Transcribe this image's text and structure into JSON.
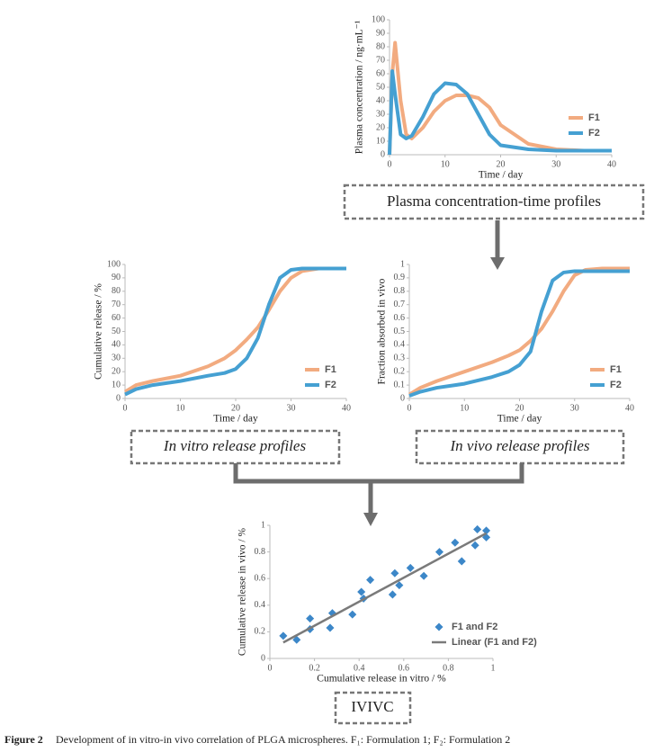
{
  "chart_data": [
    {
      "type": "line",
      "xlabel": "Time / day",
      "ylabel": "Plasma concentration / ng·mL⁻¹",
      "xlim": [
        0,
        40
      ],
      "xticks": [
        0,
        10,
        20,
        30,
        40
      ],
      "ylim": [
        0,
        100
      ],
      "yticks": [
        0,
        10,
        20,
        30,
        40,
        50,
        60,
        70,
        80,
        90,
        100
      ],
      "legend": "right",
      "series": [
        {
          "name": "F1",
          "color": "#f2ab80",
          "x": [
            0,
            0.5,
            1,
            2,
            3,
            4,
            6,
            8,
            10,
            12,
            14,
            16,
            18,
            20,
            25,
            30,
            35,
            40
          ],
          "values": [
            0,
            60,
            83,
            40,
            15,
            12,
            20,
            32,
            40,
            44,
            44,
            42,
            35,
            22,
            8,
            4,
            3,
            3
          ]
        },
        {
          "name": "F2",
          "color": "#45a0d2",
          "x": [
            0,
            0.5,
            1,
            2,
            3,
            4,
            6,
            8,
            10,
            12,
            14,
            16,
            18,
            20,
            25,
            30,
            35,
            40
          ],
          "values": [
            0,
            62,
            45,
            15,
            12,
            14,
            28,
            45,
            53,
            52,
            45,
            30,
            15,
            7,
            4,
            3,
            3,
            3
          ]
        }
      ]
    },
    {
      "type": "line",
      "xlabel": "Time / day",
      "ylabel": "Cumulative release / %",
      "xlim": [
        0,
        40
      ],
      "xticks": [
        0,
        10,
        20,
        30,
        40
      ],
      "ylim": [
        0,
        100
      ],
      "yticks": [
        0,
        10,
        20,
        30,
        40,
        50,
        60,
        70,
        80,
        90,
        100
      ],
      "legend": "right",
      "series": [
        {
          "name": "F1",
          "color": "#f2ab80",
          "x": [
            0,
            2,
            5,
            10,
            15,
            18,
            20,
            22,
            24,
            26,
            28,
            30,
            32,
            35,
            40
          ],
          "values": [
            5,
            10,
            13,
            17,
            24,
            30,
            36,
            44,
            53,
            66,
            80,
            90,
            95,
            97,
            97
          ]
        },
        {
          "name": "F2",
          "color": "#45a0d2",
          "x": [
            0,
            2,
            5,
            10,
            15,
            18,
            20,
            22,
            24,
            26,
            28,
            30,
            32,
            35,
            40
          ],
          "values": [
            3,
            7,
            10,
            13,
            17,
            19,
            22,
            30,
            45,
            70,
            90,
            96,
            97,
            97,
            97
          ]
        }
      ]
    },
    {
      "type": "line",
      "xlabel": "Time / day",
      "ylabel": "Fraction absorbed in vivo",
      "xlim": [
        0,
        40
      ],
      "xticks": [
        0,
        10,
        20,
        30,
        40
      ],
      "ylim": [
        0,
        1
      ],
      "yticks": [
        0,
        0.1,
        0.2,
        0.3,
        0.4,
        0.5,
        0.6,
        0.7,
        0.8,
        0.9,
        1
      ],
      "legend": "right",
      "series": [
        {
          "name": "F1",
          "color": "#f2ab80",
          "x": [
            0,
            2,
            5,
            10,
            15,
            18,
            20,
            22,
            24,
            26,
            28,
            30,
            32,
            35,
            40
          ],
          "values": [
            0.03,
            0.08,
            0.13,
            0.2,
            0.27,
            0.32,
            0.36,
            0.43,
            0.52,
            0.65,
            0.8,
            0.92,
            0.96,
            0.97,
            0.97
          ]
        },
        {
          "name": "F2",
          "color": "#45a0d2",
          "x": [
            0,
            2,
            5,
            10,
            15,
            18,
            20,
            22,
            24,
            26,
            28,
            30,
            32,
            35,
            40
          ],
          "values": [
            0.02,
            0.05,
            0.08,
            0.11,
            0.16,
            0.2,
            0.25,
            0.35,
            0.65,
            0.88,
            0.94,
            0.95,
            0.95,
            0.95,
            0.95
          ]
        }
      ]
    },
    {
      "type": "scatter",
      "xlabel": "Cumulative release in vitro / %",
      "ylabel": "Cumulative release in vivo / %",
      "xlim": [
        0,
        1
      ],
      "xticks": [
        0,
        0.2,
        0.4,
        0.6,
        0.8,
        1
      ],
      "ylim": [
        0,
        1
      ],
      "yticks": [
        0,
        0.2,
        0.4,
        0.6,
        0.8,
        1
      ],
      "legend": "right",
      "series": [
        {
          "name": "F1 and F2",
          "color": "#3c87c8",
          "x": [
            0.06,
            0.12,
            0.18,
            0.18,
            0.27,
            0.28,
            0.37,
            0.41,
            0.42,
            0.45,
            0.55,
            0.56,
            0.58,
            0.63,
            0.69,
            0.76,
            0.83,
            0.86,
            0.92,
            0.93,
            0.97,
            0.97
          ],
          "values": [
            0.17,
            0.14,
            0.22,
            0.3,
            0.23,
            0.34,
            0.33,
            0.5,
            0.45,
            0.59,
            0.48,
            0.64,
            0.55,
            0.68,
            0.62,
            0.8,
            0.87,
            0.73,
            0.85,
            0.97,
            0.91,
            0.96
          ]
        },
        {
          "name": "Linear (F1 and F2)",
          "color": "#7a7a7a",
          "type": "line",
          "x": [
            0.06,
            0.97
          ],
          "values": [
            0.12,
            0.94
          ]
        }
      ]
    }
  ],
  "boxes": [
    "Plasma concentration-time profiles",
    "In vitro release profiles",
    "In vivo release profiles",
    "IVIVC"
  ],
  "caption": {
    "label": "Figure 2",
    "text": "Development of in vitro-in vivo correlation of PLGA microspheres. F₁: Formulation 1; F₂: Formulation 2"
  }
}
